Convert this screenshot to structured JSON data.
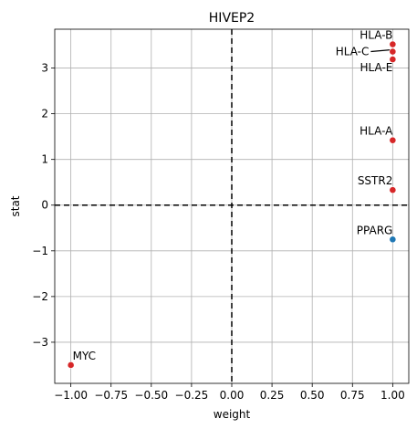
{
  "chart_data": {
    "type": "scatter",
    "title": "HIVEP2",
    "xlabel": "weight",
    "ylabel": "stat",
    "xlim": [
      -1.1,
      1.1
    ],
    "ylim": [
      -3.9,
      3.85
    ],
    "xticks": [
      -1.0,
      -0.75,
      -0.5,
      -0.25,
      0.0,
      0.25,
      0.5,
      0.75,
      1.0
    ],
    "xtick_labels": [
      "−1.00",
      "−0.75",
      "−0.50",
      "−0.25",
      "0.00",
      "0.25",
      "0.50",
      "0.75",
      "1.00"
    ],
    "yticks": [
      -3,
      -2,
      -1,
      0,
      1,
      2,
      3
    ],
    "ytick_labels": [
      "−3",
      "−2",
      "−1",
      "0",
      "1",
      "2",
      "3"
    ],
    "grid": true,
    "reference_lines": {
      "x": 0,
      "y": 0,
      "style": "dashed"
    },
    "colors": {
      "positive": "#d62728",
      "negative": "#1f77b4"
    },
    "points": [
      {
        "label": "HLA-B",
        "x": 1.0,
        "y": 3.52,
        "color": "#d62728"
      },
      {
        "label": "HLA-C",
        "x": 1.0,
        "y": 3.36,
        "color": "#d62728"
      },
      {
        "label": "HLA-E",
        "x": 1.0,
        "y": 3.19,
        "color": "#d62728"
      },
      {
        "label": "HLA-A",
        "x": 1.0,
        "y": 1.42,
        "color": "#d62728"
      },
      {
        "label": "SSTR2",
        "x": 1.0,
        "y": 0.33,
        "color": "#d62728"
      },
      {
        "label": "PPARG",
        "x": 1.0,
        "y": -0.75,
        "color": "#1f77b4"
      },
      {
        "label": "MYC",
        "x": -1.0,
        "y": -3.5,
        "color": "#d62728"
      }
    ]
  }
}
